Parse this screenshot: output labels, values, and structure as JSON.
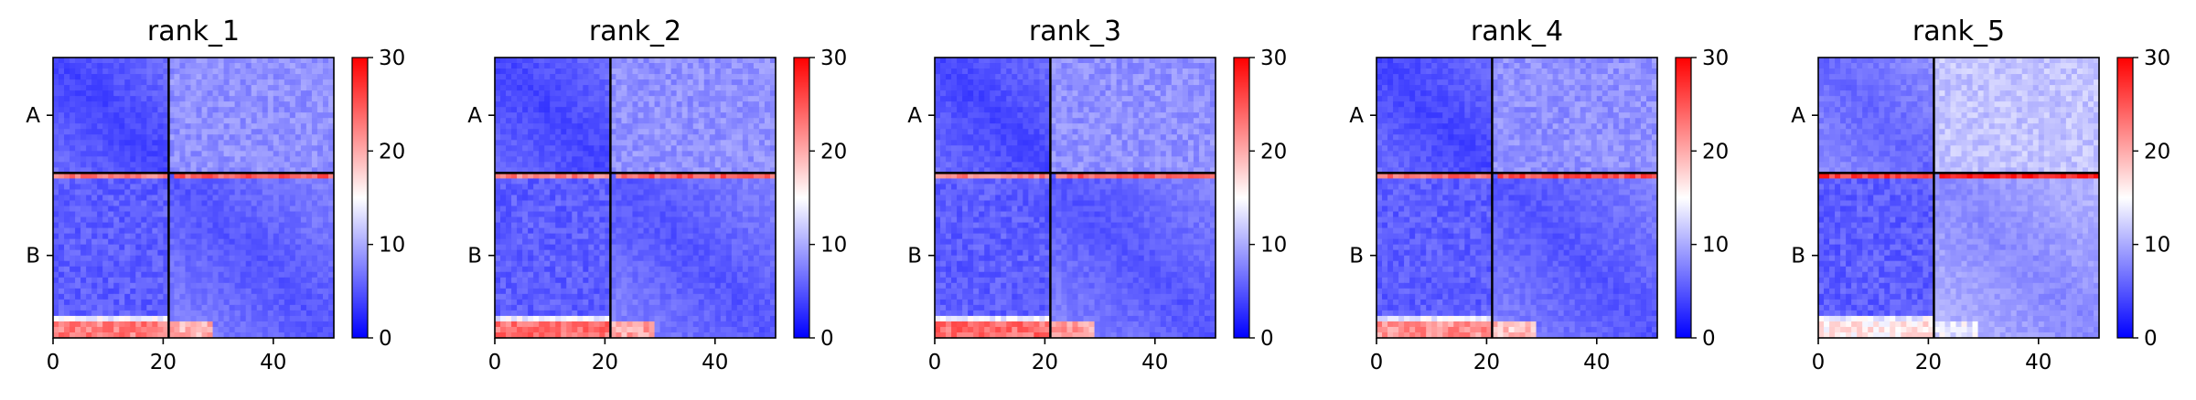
{
  "figure": {
    "title": ""
  },
  "panels": [
    {
      "title": "rank_1"
    },
    {
      "title": "rank_2"
    },
    {
      "title": "rank_3"
    },
    {
      "title": "rank_4"
    },
    {
      "title": "rank_5"
    }
  ],
  "chart_data": [
    {
      "type": "heatmap",
      "title": "rank_1",
      "xlabel": "",
      "ylabel": "",
      "x_range": [
        0,
        51
      ],
      "y_range": [
        0,
        51
      ],
      "x_ticks": [
        0,
        20,
        40
      ],
      "y_tick_labels": [
        {
          "label": "A",
          "position": 10.5
        },
        {
          "label": "B",
          "position": 36
        }
      ],
      "chain_boundary": 21,
      "colorbar": {
        "min": 0,
        "max": 30,
        "ticks": [
          0,
          10,
          20,
          30
        ],
        "colors": [
          "#0000ff",
          "#ffffff",
          "#ff0000"
        ]
      },
      "blocks": {
        "AA": 3,
        "AB": 7,
        "BB": 4,
        "BA_top_row": 20,
        "BA_bottom_row": 20
      },
      "grid": false
    },
    {
      "type": "heatmap",
      "title": "rank_2",
      "xlabel": "",
      "ylabel": "",
      "x_range": [
        0,
        51
      ],
      "y_range": [
        0,
        51
      ],
      "x_ticks": [
        0,
        20,
        40
      ],
      "y_tick_labels": [
        {
          "label": "A",
          "position": 10.5
        },
        {
          "label": "B",
          "position": 36
        }
      ],
      "chain_boundary": 21,
      "colorbar": {
        "min": 0,
        "max": 30,
        "ticks": [
          0,
          10,
          20,
          30
        ],
        "colors": [
          "#0000ff",
          "#ffffff",
          "#ff0000"
        ]
      },
      "blocks": {
        "AA": 3,
        "AB": 7,
        "BB": 4,
        "BA_top_row": 20,
        "BA_bottom_row": 21
      },
      "grid": false
    },
    {
      "type": "heatmap",
      "title": "rank_3",
      "xlabel": "",
      "ylabel": "",
      "x_range": [
        0,
        51
      ],
      "y_range": [
        0,
        51
      ],
      "x_ticks": [
        0,
        20,
        40
      ],
      "y_tick_labels": [
        {
          "label": "A",
          "position": 10.5
        },
        {
          "label": "B",
          "position": 36
        }
      ],
      "chain_boundary": 21,
      "colorbar": {
        "min": 0,
        "max": 30,
        "ticks": [
          0,
          10,
          20,
          30
        ],
        "colors": [
          "#0000ff",
          "#ffffff",
          "#ff0000"
        ]
      },
      "blocks": {
        "AA": 3,
        "AB": 7,
        "BB": 4,
        "BA_top_row": 20,
        "BA_bottom_row": 21
      },
      "grid": false
    },
    {
      "type": "heatmap",
      "title": "rank_4",
      "xlabel": "",
      "ylabel": "",
      "x_range": [
        0,
        51
      ],
      "y_range": [
        0,
        51
      ],
      "x_ticks": [
        0,
        20,
        40
      ],
      "y_tick_labels": [
        {
          "label": "A",
          "position": 10.5
        },
        {
          "label": "B",
          "position": 36
        }
      ],
      "chain_boundary": 21,
      "colorbar": {
        "min": 0,
        "max": 30,
        "ticks": [
          0,
          10,
          20,
          30
        ],
        "colors": [
          "#0000ff",
          "#ffffff",
          "#ff0000"
        ]
      },
      "blocks": {
        "AA": 3,
        "AB": 7,
        "BB": 4,
        "BA_top_row": 21,
        "BA_bottom_row": 19
      },
      "grid": false
    },
    {
      "type": "heatmap",
      "title": "rank_5",
      "xlabel": "",
      "ylabel": "",
      "x_range": [
        0,
        51
      ],
      "y_range": [
        0,
        51
      ],
      "x_ticks": [
        0,
        20,
        40
      ],
      "y_tick_labels": [
        {
          "label": "A",
          "position": 10.5
        },
        {
          "label": "B",
          "position": 36
        }
      ],
      "chain_boundary": 21,
      "colorbar": {
        "min": 0,
        "max": 30,
        "ticks": [
          0,
          10,
          20,
          30
        ],
        "colors": [
          "#0000ff",
          "#ffffff",
          "#ff0000"
        ]
      },
      "blocks": {
        "AA": 5,
        "AB": 10,
        "BB": 7,
        "BA_top_row": 24,
        "BA_bottom_row": 14
      },
      "grid": false
    }
  ]
}
